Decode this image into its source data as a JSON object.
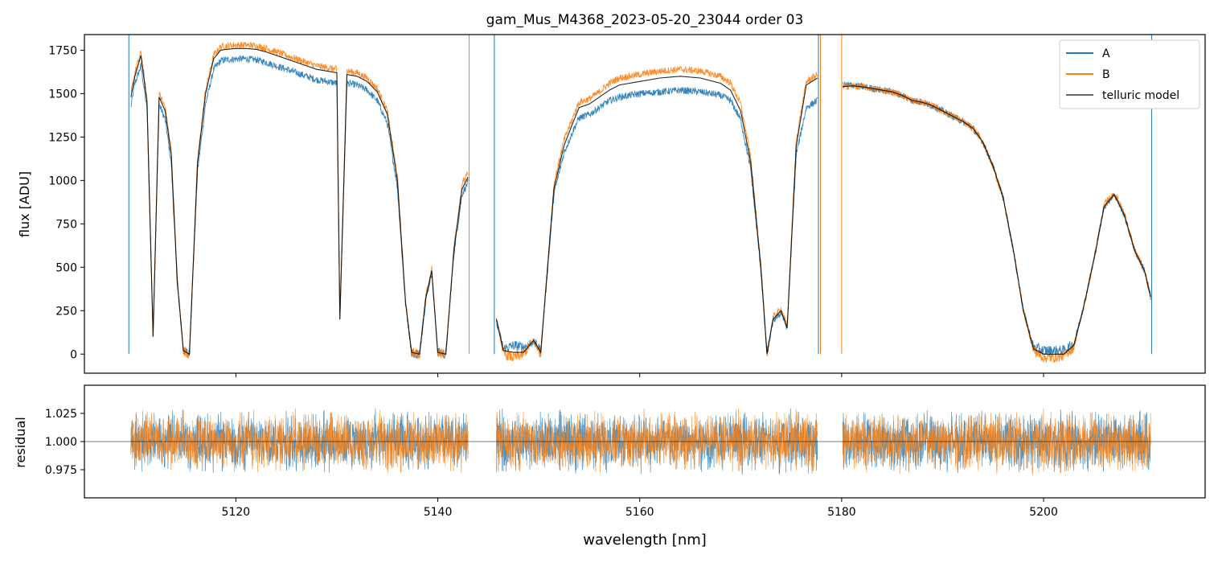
{
  "title": "gam_Mus_M4368_2023-05-20_23044  order 03",
  "colors": {
    "A": "#1f77b4",
    "B": "#ff7f0e",
    "model": "#000000",
    "axes": "#000000"
  },
  "chart_data": [
    {
      "type": "line",
      "panel": "top",
      "title": "gam_Mus_M4368_2023-05-20_23044  order 03",
      "xlabel": "",
      "ylabel": "flux [ADU]",
      "xlim": [
        5105,
        5216
      ],
      "ylim": [
        -110,
        1840
      ],
      "xticks": [
        5120,
        5140,
        5160,
        5180,
        5200
      ],
      "yticks": [
        0,
        250,
        500,
        750,
        1000,
        1250,
        1500,
        1750
      ],
      "ytick_labels": [
        "0",
        "250",
        "500",
        "750",
        "1000",
        "1250",
        "1500",
        "1750"
      ],
      "legend": {
        "placement": "top-right",
        "entries": [
          "A",
          "B",
          "telluric model"
        ]
      },
      "segments": [
        {
          "name": "seg1",
          "x": [
            5109.6,
            5110.0,
            5110.6,
            5111.2,
            5111.8,
            5112.4,
            5113.0,
            5113.6,
            5114.2,
            5114.8,
            5115.4,
            5116.2,
            5117.0,
            5117.8,
            5118.5,
            5119.0,
            5120.0,
            5121.0,
            5122.0,
            5123.0,
            5124.0,
            5125.0,
            5126.0,
            5127.0,
            5128.0,
            5129.0,
            5130.0,
            5130.3,
            5131.0,
            5132.0,
            5133.0,
            5134.0,
            5135.0,
            5136.0,
            5136.8,
            5137.4,
            5138.2,
            5138.8,
            5139.4,
            5140.0,
            5140.8,
            5141.6,
            5142.4,
            5143.0
          ],
          "model": [
            1480,
            1600,
            1720,
            1450,
            100,
            1480,
            1400,
            1150,
            420,
            20,
            0,
            1100,
            1500,
            1700,
            1750,
            1755,
            1760,
            1760,
            1755,
            1740,
            1720,
            1700,
            1680,
            1660,
            1640,
            1630,
            1620,
            200,
            1610,
            1600,
            1570,
            1510,
            1380,
            1000,
            300,
            10,
            0,
            320,
            480,
            10,
            0,
            600,
            950,
            1020
          ],
          "A": [
            1420,
            1560,
            1660,
            1410,
            100,
            1440,
            1350,
            1100,
            400,
            20,
            0,
            1050,
            1440,
            1640,
            1690,
            1695,
            1700,
            1700,
            1695,
            1680,
            1660,
            1640,
            1620,
            1600,
            1580,
            1570,
            1560,
            200,
            1560,
            1550,
            1520,
            1460,
            1330,
            960,
            290,
            10,
            0,
            310,
            470,
            10,
            0,
            580,
            920,
            990
          ],
          "B": [
            1500,
            1620,
            1740,
            1470,
            100,
            1500,
            1420,
            1170,
            430,
            20,
            0,
            1120,
            1520,
            1720,
            1770,
            1775,
            1780,
            1780,
            1775,
            1760,
            1740,
            1720,
            1700,
            1680,
            1660,
            1650,
            1640,
            200,
            1630,
            1620,
            1590,
            1530,
            1400,
            1020,
            310,
            10,
            0,
            330,
            490,
            10,
            0,
            620,
            980,
            1040
          ]
        },
        {
          "name": "seg2",
          "x": [
            5145.8,
            5146.5,
            5147.5,
            5148.5,
            5149.5,
            5150.2,
            5150.8,
            5151.5,
            5152.5,
            5153.5,
            5154.0,
            5155.0,
            5156.0,
            5157.0,
            5158.0,
            5160.0,
            5162.0,
            5164.0,
            5166.0,
            5168.0,
            5169.0,
            5170.0,
            5171.0,
            5172.0,
            5172.6,
            5173.2,
            5174.0,
            5174.6,
            5175.5,
            5176.5,
            5177.6
          ],
          "model": [
            200,
            20,
            10,
            10,
            80,
            10,
            450,
            950,
            1200,
            1350,
            1420,
            1440,
            1480,
            1520,
            1550,
            1570,
            1590,
            1600,
            1590,
            1560,
            1520,
            1400,
            1100,
            500,
            0,
            200,
            250,
            150,
            1200,
            1550,
            1590
          ],
          "A": [
            190,
            30,
            50,
            40,
            70,
            20,
            430,
            920,
            1160,
            1300,
            1360,
            1380,
            1420,
            1460,
            1480,
            1500,
            1510,
            1520,
            1510,
            1490,
            1460,
            1350,
            1060,
            480,
            0,
            190,
            240,
            150,
            1150,
            1420,
            1460
          ],
          "B": [
            210,
            0,
            -20,
            0,
            80,
            0,
            460,
            980,
            1230,
            1380,
            1450,
            1470,
            1510,
            1560,
            1590,
            1610,
            1630,
            1640,
            1630,
            1600,
            1560,
            1440,
            1130,
            520,
            0,
            210,
            260,
            160,
            1230,
            1570,
            1610
          ]
        },
        {
          "name": "seg3",
          "x": [
            5180.1,
            5181.0,
            5182.0,
            5183.0,
            5184.0,
            5185.0,
            5186.0,
            5187.0,
            5188.0,
            5189.0,
            5190.0,
            5191.0,
            5192.0,
            5193.0,
            5194.0,
            5195.0,
            5196.0,
            5197.0,
            5198.0,
            5199.0,
            5200.0,
            5201.0,
            5202.0,
            5203.0,
            5204.0,
            5205.0,
            5206.0,
            5207.0,
            5208.0,
            5209.0,
            5210.0,
            5210.6
          ],
          "model": [
            1540,
            1545,
            1540,
            1530,
            1520,
            1510,
            1490,
            1460,
            1450,
            1430,
            1400,
            1370,
            1340,
            1300,
            1220,
            1080,
            900,
            600,
            250,
            30,
            0,
            0,
            0,
            50,
            280,
            550,
            850,
            920,
            800,
            600,
            480,
            330
          ],
          "A": [
            1550,
            1550,
            1540,
            1530,
            1520,
            1510,
            1490,
            1460,
            1450,
            1430,
            1400,
            1370,
            1340,
            1300,
            1220,
            1080,
            900,
            600,
            250,
            40,
            20,
            20,
            20,
            60,
            280,
            550,
            850,
            920,
            800,
            600,
            480,
            330
          ],
          "B": [
            1540,
            1545,
            1540,
            1530,
            1520,
            1510,
            1490,
            1460,
            1450,
            1430,
            1400,
            1370,
            1340,
            1300,
            1220,
            1080,
            900,
            600,
            250,
            20,
            -20,
            -20,
            -10,
            40,
            280,
            550,
            860,
            930,
            810,
            600,
            480,
            330
          ]
        }
      ]
    },
    {
      "type": "line",
      "panel": "bottom",
      "xlabel": "wavelength [nm]",
      "ylabel": "residual",
      "xlim": [
        5105,
        5216
      ],
      "ylim": [
        0.95,
        1.05
      ],
      "xticks": [
        5120,
        5140,
        5160,
        5180,
        5200
      ],
      "xtick_labels": [
        "5120",
        "5140",
        "5160",
        "5180",
        "5200"
      ],
      "yticks": [
        0.975,
        1.0,
        1.025
      ],
      "ytick_labels": [
        "0.975",
        "1.000",
        "1.025"
      ],
      "reference_line": 1.0,
      "residual_ranges": [
        [
          5109.6,
          5143.0
        ],
        [
          5145.8,
          5177.6
        ],
        [
          5180.1,
          5210.6
        ]
      ],
      "residual_scatter": 0.015
    }
  ]
}
